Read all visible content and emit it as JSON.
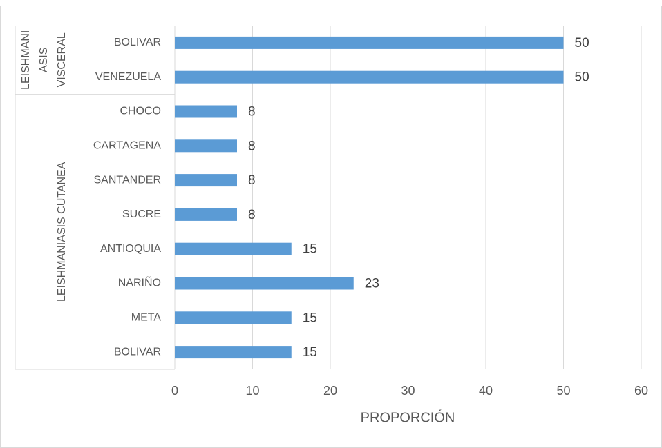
{
  "chart_data": {
    "type": "bar",
    "orientation": "horizontal",
    "groups": [
      {
        "name": [
          "LEISHMANI",
          "ASIS",
          "VISCERAL"
        ],
        "categories": [
          "BOLIVAR",
          "VENEZUELA"
        ],
        "values": [
          50,
          50
        ]
      },
      {
        "name": [
          "LEISHMANIASIS CUTANEA"
        ],
        "categories": [
          "CHOCO",
          "CARTAGENA",
          "SANTANDER",
          "SUCRE",
          "ANTIOQUIA",
          "NARIÑO",
          "META",
          "BOLIVAR"
        ],
        "values": [
          8,
          8,
          8,
          8,
          15,
          23,
          15,
          15
        ]
      }
    ],
    "color": "#5b9bd5",
    "xlabel": "PROPORCIÓN",
    "xlim": [
      0,
      60
    ],
    "xticks": [
      0,
      10,
      20,
      30,
      40,
      50,
      60
    ],
    "grid": true
  }
}
